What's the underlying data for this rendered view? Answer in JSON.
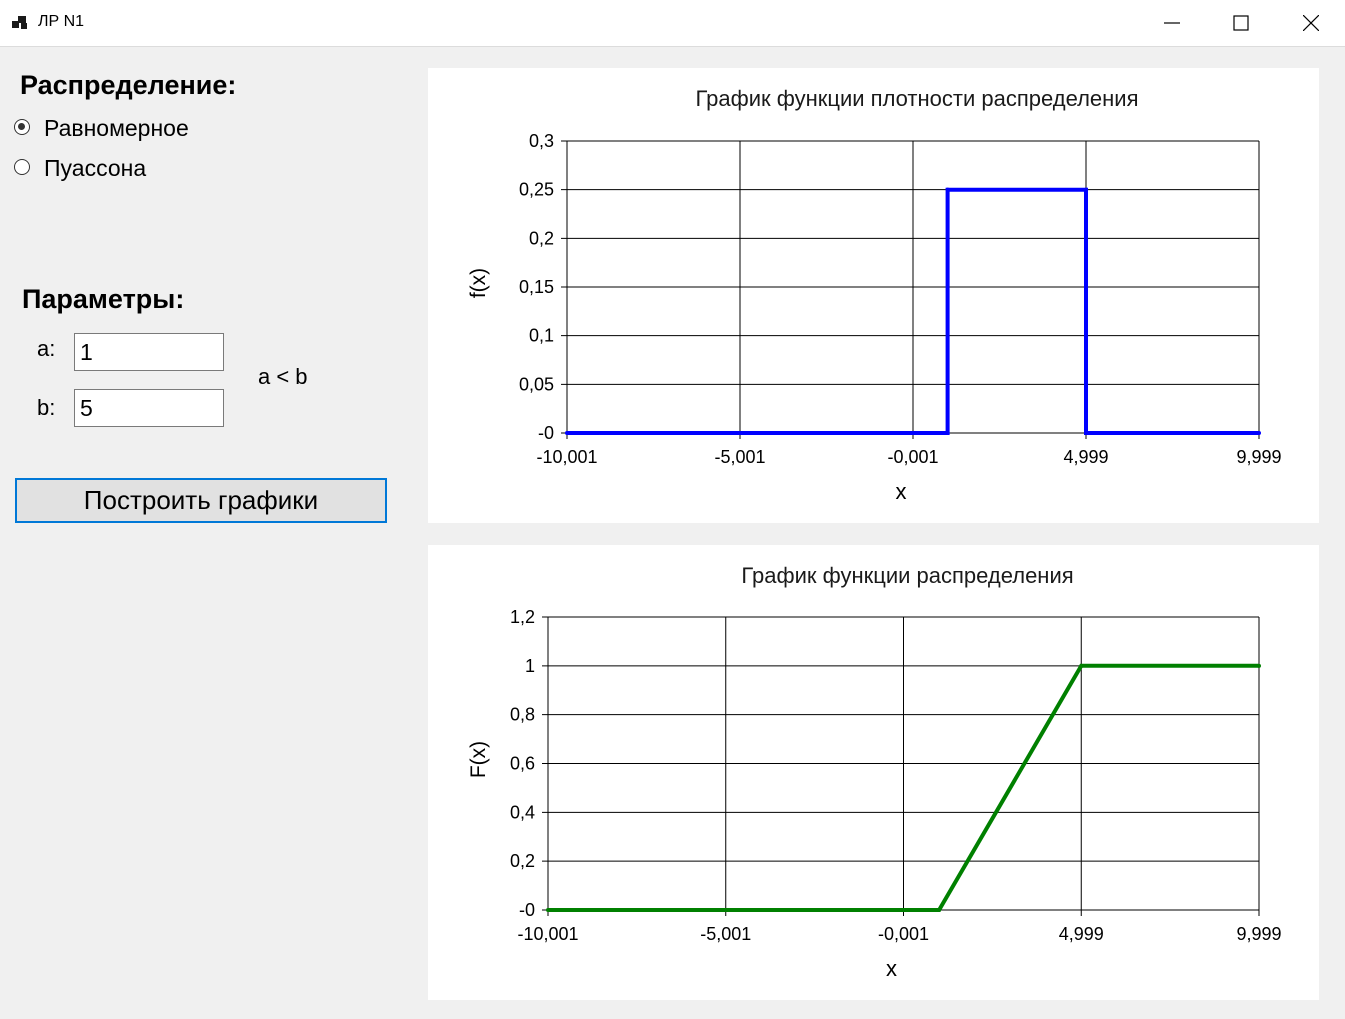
{
  "window": {
    "title": "ЛР N1",
    "controls": [
      "minimize-icon",
      "maximize-icon",
      "close-icon"
    ]
  },
  "distribution": {
    "title": "Распределение:",
    "options": [
      {
        "label": "Равномерное",
        "selected": true
      },
      {
        "label": "Пуассона",
        "selected": false
      }
    ]
  },
  "parameters": {
    "title": "Параметры:",
    "a_label": "a:",
    "a_value": "1",
    "b_label": "b:",
    "b_value": "5",
    "constraint": "a < b"
  },
  "build_button_label": "Построить графики",
  "chart_data": [
    {
      "type": "line",
      "title": "График функции плотности распределения",
      "xlabel": "x",
      "ylabel": "f(x)",
      "xlim": [
        -10.001,
        9.999
      ],
      "ylim": [
        0,
        0.3
      ],
      "x_ticks": [
        -10.001,
        -5.001,
        -0.001,
        4.999,
        9.999
      ],
      "x_tick_labels": [
        "-10,001",
        "-5,001",
        "-0,001",
        "4,999",
        "9,999"
      ],
      "y_ticks": [
        0,
        0.05,
        0.1,
        0.15,
        0.2,
        0.25,
        0.3
      ],
      "y_tick_labels": [
        "-0",
        "0,05",
        "0,1",
        "0,15",
        "0,2",
        "0,25",
        "0,3"
      ],
      "grid": true,
      "series": [
        {
          "color": "#0000ff",
          "x": [
            -10.001,
            1,
            1,
            5,
            5,
            9.999
          ],
          "y": [
            0,
            0,
            0.25,
            0.25,
            0,
            0
          ]
        }
      ]
    },
    {
      "type": "line",
      "title": "График функции распределения",
      "xlabel": "x",
      "ylabel": "F(x)",
      "xlim": [
        -10.001,
        9.999
      ],
      "ylim": [
        0,
        1.2
      ],
      "x_ticks": [
        -10.001,
        -5.001,
        -0.001,
        4.999,
        9.999
      ],
      "x_tick_labels": [
        "-10,001",
        "-5,001",
        "-0,001",
        "4,999",
        "9,999"
      ],
      "y_ticks": [
        0,
        0.2,
        0.4,
        0.6,
        0.8,
        1,
        1.2
      ],
      "y_tick_labels": [
        "-0",
        "0,2",
        "0,4",
        "0,6",
        "0,8",
        "1",
        "1,2"
      ],
      "grid": true,
      "series": [
        {
          "color": "#008000",
          "x": [
            -10.001,
            1,
            5,
            9.999
          ],
          "y": [
            0,
            0,
            1,
            1
          ]
        }
      ]
    }
  ]
}
